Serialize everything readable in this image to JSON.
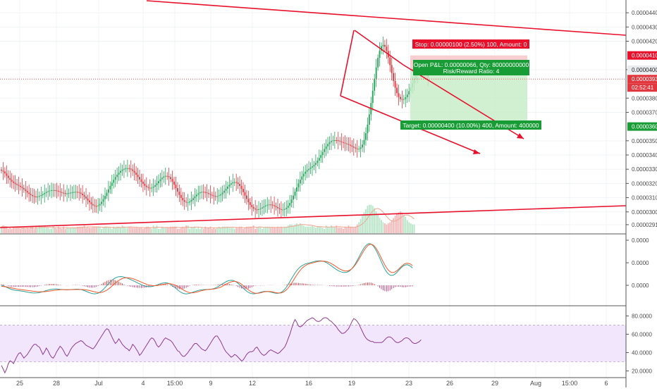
{
  "chart_data": {
    "type": "candlestick",
    "panes": [
      "price-volume",
      "macd",
      "rsi"
    ],
    "x_tick_labels": [
      "25",
      "28",
      "Jul",
      "4",
      "15:00",
      "9",
      "12",
      "16",
      "19",
      "23",
      "26",
      "29",
      "Aug",
      "15:00",
      "6"
    ],
    "price_axis": {
      "ticks": [
        "0.00004400",
        "0.00004300",
        "0.00004200",
        "0.00004000",
        "0.00003800",
        "0.00003700",
        "0.00003500",
        "0.00003400",
        "0.00003300",
        "0.00003200",
        "0.00003100",
        "0.00003000",
        "0.00002910"
      ],
      "ylim": [
        2.87e-05,
        4.47e-05
      ],
      "badges": {
        "stop": "0.00004100",
        "entry": "0.00004000",
        "last": "0.00003934",
        "countdown": "02:52:41",
        "target": "0.00003600"
      }
    },
    "macd_axis": {
      "ticks": [
        "0.0000",
        "0.0000",
        "0.0000"
      ]
    },
    "rsi_axis": {
      "ticks": [
        "80.0000",
        "60.0000",
        "40.0000",
        "20.0000"
      ],
      "ylim": [
        15,
        88
      ],
      "band": [
        30,
        70
      ]
    },
    "position": {
      "stop_label": "Stop: 0.00000100 (2.50%) 100, Amount: 0",
      "pnl_label": "Open P&L: 0.00000066, Qty: 80000000000",
      "rr_label": "Risk/Reward Ratio: 4",
      "target_label": "Target: 0.00000400 (10.00%) 400, Amount: 400000",
      "entry": 4e-05,
      "stop": 4.1e-05,
      "target": 3.6e-05
    },
    "price_series": [
      3.29e-05,
      3.284e-05,
      3.27e-05,
      3.254e-05,
      3.238e-05,
      3.225e-05,
      3.213e-05,
      3.204e-05,
      3.196e-05,
      3.189e-05,
      3.183e-05,
      3.176e-05,
      3.168e-05,
      3.158e-05,
      3.147e-05,
      3.136e-05,
      3.126e-05,
      3.118e-05,
      3.111e-05,
      3.108e-05,
      3.107e-05,
      3.108e-05,
      3.112e-05,
      3.118e-05,
      3.125e-05,
      3.133e-05,
      3.14e-05,
      3.146e-05,
      3.15e-05,
      3.153e-05,
      3.153e-05,
      3.151e-05,
      3.148e-05,
      3.144e-05,
      3.139e-05,
      3.135e-05,
      3.132e-05,
      3.13e-05,
      3.13e-05,
      3.132e-05,
      3.135e-05,
      3.138e-05,
      3.14e-05,
      3.141e-05,
      3.139e-05,
      3.135e-05,
      3.128e-05,
      3.118e-05,
      3.107e-05,
      3.094e-05,
      3.08e-05,
      3.067e-05,
      3.055e-05,
      3.046e-05,
      3.041e-05,
      3.04e-05,
      3.045e-05,
      3.056e-05,
      3.071e-05,
      3.09e-05,
      3.112e-05,
      3.135e-05,
      3.159e-05,
      3.183e-05,
      3.205e-05,
      3.226e-05,
      3.245e-05,
      3.262e-05,
      3.276e-05,
      3.288e-05,
      3.297e-05,
      3.303e-05,
      3.307e-05,
      3.307e-05,
      3.304e-05,
      3.298e-05,
      3.288e-05,
      3.276e-05,
      3.261e-05,
      3.245e-05,
      3.228e-05,
      3.212e-05,
      3.197e-05,
      3.184e-05,
      3.175e-05,
      3.169e-05,
      3.167e-05,
      3.17e-05,
      3.177e-05,
      3.188e-05,
      3.201e-05,
      3.216e-05,
      3.229e-05,
      3.241e-05,
      3.249e-05,
      3.253e-05,
      3.251e-05,
      3.244e-05,
      3.231e-05,
      3.213e-05,
      3.191e-05,
      3.167e-05,
      3.142e-05,
      3.119e-05,
      3.098e-05,
      3.082e-05,
      3.071e-05,
      3.066e-05,
      3.067e-05,
      3.073e-05,
      3.083e-05,
      3.096e-05,
      3.109e-05,
      3.121e-05,
      3.131e-05,
      3.138e-05,
      3.141e-05,
      3.14e-05,
      3.137e-05,
      3.132e-05,
      3.126e-05,
      3.12e-05,
      3.115e-05,
      3.111e-05,
      3.11e-05,
      3.111e-05,
      3.116e-05,
      3.124e-05,
      3.135e-05,
      3.149e-05,
      3.163e-05,
      3.178e-05,
      3.191e-05,
      3.201e-05,
      3.208e-05,
      3.21e-05,
      3.206e-05,
      3.197e-05,
      3.182e-05,
      3.162e-05,
      3.139e-05,
      3.115e-05,
      3.091e-05,
      3.068e-05,
      3.049e-05,
      3.034e-05,
      3.023e-05,
      3.017e-05,
      3.016e-05,
      3.019e-05,
      3.024e-05,
      3.031e-05,
      3.039e-05,
      3.045e-05,
      3.05e-05,
      3.052e-05,
      3.051e-05,
      3.047e-05,
      3.041e-05,
      3.034e-05,
      3.026e-05,
      3.02e-05,
      3.016e-05,
      3.016e-05,
      3.02e-05,
      3.029e-05,
      3.044e-05,
      3.063e-05,
      3.087e-05,
      3.114e-05,
      3.143e-05,
      3.172e-05,
      3.2e-05,
      3.226e-05,
      3.249e-05,
      3.268e-05,
      3.283e-05,
      3.294e-05,
      3.303e-05,
      3.312e-05,
      3.32e-05,
      3.331e-05,
      3.344e-05,
      3.36e-05,
      3.379e-05,
      3.4e-05,
      3.421e-05,
      3.442e-05,
      3.461e-05,
      3.477e-05,
      3.49e-05,
      3.498e-05,
      3.503e-05,
      3.504e-05,
      3.503e-05,
      3.5e-05,
      3.495e-05,
      3.49e-05,
      3.486e-05,
      3.481e-05,
      3.477e-05,
      3.472e-05,
      3.466e-05,
      3.459e-05,
      3.452e-05,
      3.446e-05,
      3.442e-05,
      3.443e-05,
      3.453e-05,
      3.473e-05,
      3.506e-05,
      3.553e-05,
      3.613e-05,
      3.685e-05,
      3.766e-05,
      3.852e-05,
      3.937e-05,
      4.016e-05,
      4.083e-05,
      4.134e-05,
      4.165e-05,
      4.174e-05,
      4.161e-05,
      4.131e-05,
      4.086e-05,
      4.032e-05,
      3.976e-05,
      3.921e-05,
      3.873e-05,
      3.835e-05,
      3.808e-05,
      3.793e-05,
      3.788e-05,
      3.793e-05,
      3.806e-05,
      3.825e-05,
      3.849e-05,
      3.876e-05,
      3.905e-05,
      3.935e-05,
      3.962e-05,
      3.984e-05,
      3.999e-05,
      4.005e-05,
      4e-05,
      3.985e-05,
      3.964e-05,
      3.939e-05
    ],
    "volume_series": [
      6,
      7,
      5,
      6,
      4,
      5,
      4,
      5,
      5,
      6,
      5,
      4,
      5,
      5,
      4,
      5,
      4,
      6,
      6,
      4,
      6,
      5,
      7,
      6,
      5,
      5,
      5,
      5,
      4,
      4,
      7,
      5,
      4,
      6,
      5,
      4,
      6,
      4,
      5,
      5,
      5,
      5,
      5,
      5,
      6,
      6,
      6,
      6,
      7,
      5,
      6,
      5,
      5,
      6,
      6,
      6,
      6,
      6,
      4,
      5,
      6,
      6,
      5,
      5,
      4,
      6,
      5,
      6,
      6,
      5,
      7,
      6,
      5,
      5,
      6,
      6,
      5,
      5,
      5,
      5,
      5,
      5,
      4,
      5,
      6,
      6,
      5,
      4,
      7,
      5,
      7,
      4,
      4,
      6,
      5,
      5,
      5,
      5,
      6,
      6,
      6,
      6,
      4,
      4,
      5,
      6,
      5,
      7,
      7,
      4,
      6,
      5,
      6,
      4,
      6,
      4,
      5,
      4,
      6,
      5,
      5,
      6,
      4,
      5,
      4,
      5,
      6,
      5,
      6,
      6,
      6,
      6,
      5,
      5,
      5,
      4,
      5,
      5,
      6,
      6,
      4,
      5,
      6,
      6,
      6,
      6,
      7,
      4,
      5,
      6,
      6,
      4,
      5,
      6,
      6,
      6,
      5,
      5,
      5,
      5,
      6,
      5,
      6,
      5,
      6,
      6,
      7,
      8,
      8,
      7,
      8,
      9,
      8,
      9,
      8,
      7,
      6,
      6,
      6,
      6,
      7,
      6,
      5,
      6,
      6,
      6,
      5,
      4,
      7,
      6,
      5,
      7,
      6,
      6,
      7,
      5,
      5,
      5,
      4,
      6,
      5,
      7,
      6,
      6,
      5,
      6,
      8,
      10,
      13,
      16,
      19,
      22,
      25,
      26,
      26,
      25,
      23,
      20,
      17,
      14,
      12,
      10,
      9,
      8,
      9,
      10,
      12,
      14,
      16,
      18,
      19,
      20,
      19,
      17,
      15,
      12,
      10,
      9,
      8,
      8
    ],
    "macd_line": [
      0.0,
      -0.04,
      -0.12,
      -0.22,
      -0.32,
      -0.41,
      -0.48,
      -0.53,
      -0.57,
      -0.6,
      -0.62,
      -0.64,
      -0.67,
      -0.7,
      -0.74,
      -0.78,
      -0.82,
      -0.85,
      -0.88,
      -0.89,
      -0.88,
      -0.86,
      -0.83,
      -0.78,
      -0.73,
      -0.67,
      -0.6,
      -0.55,
      -0.5,
      -0.46,
      -0.44,
      -0.43,
      -0.43,
      -0.44,
      -0.46,
      -0.48,
      -0.5,
      -0.51,
      -0.52,
      -0.51,
      -0.5,
      -0.48,
      -0.46,
      -0.45,
      -0.45,
      -0.46,
      -0.49,
      -0.54,
      -0.61,
      -0.69,
      -0.77,
      -0.85,
      -0.92,
      -0.97,
      -0.98,
      -0.96,
      -0.9,
      -0.79,
      -0.65,
      -0.47,
      -0.26,
      -0.04,
      0.18,
      0.39,
      0.58,
      0.74,
      0.86,
      0.95,
      0.99,
      1.01,
      0.99,
      0.95,
      0.89,
      0.82,
      0.74,
      0.65,
      0.56,
      0.46,
      0.36,
      0.26,
      0.16,
      0.07,
      -0.01,
      -0.08,
      -0.13,
      -0.15,
      -0.16,
      -0.14,
      -0.1,
      -0.04,
      0.03,
      0.11,
      0.18,
      0.24,
      0.28,
      0.29,
      0.26,
      0.2,
      0.1,
      -0.03,
      -0.18,
      -0.35,
      -0.52,
      -0.68,
      -0.81,
      -0.91,
      -0.97,
      -0.99,
      -0.97,
      -0.92,
      -0.86,
      -0.78,
      -0.71,
      -0.65,
      -0.59,
      -0.55,
      -0.52,
      -0.5,
      -0.49,
      -0.48,
      -0.47,
      -0.45,
      -0.42,
      -0.37,
      -0.3,
      -0.2,
      -0.09,
      0.04,
      0.17,
      0.3,
      0.41,
      0.5,
      0.56,
      0.58,
      0.56,
      0.49,
      0.38,
      0.23,
      0.06,
      -0.13,
      -0.33,
      -0.51,
      -0.68,
      -0.81,
      -0.91,
      -0.96,
      -0.98,
      -0.96,
      -0.92,
      -0.86,
      -0.8,
      -0.75,
      -0.71,
      -0.7,
      -0.71,
      -0.74,
      -0.79,
      -0.84,
      -0.89,
      -0.92,
      -0.93,
      -0.89,
      -0.81,
      -0.66,
      -0.46,
      -0.2,
      0.1,
      0.43,
      0.77,
      1.1,
      1.42,
      1.7,
      1.93,
      2.12,
      2.26,
      2.37,
      2.46,
      2.52,
      2.58,
      2.63,
      2.68,
      2.73,
      2.78,
      2.81,
      2.83,
      2.82,
      2.79,
      2.73,
      2.64,
      2.53,
      2.39,
      2.25,
      2.1,
      1.96,
      1.82,
      1.7,
      1.6,
      1.53,
      1.48,
      1.48,
      1.51,
      1.59,
      1.74,
      1.94,
      2.2,
      2.52,
      2.88,
      3.26,
      3.64,
      4.01,
      4.33,
      4.58,
      4.75,
      4.81,
      4.76,
      4.61,
      4.35,
      4.01,
      3.6,
      3.16,
      2.71,
      2.27,
      1.88,
      1.56,
      1.32,
      1.18,
      1.14,
      1.19,
      1.32,
      1.5,
      1.72,
      1.94,
      2.13,
      2.28,
      2.36,
      2.37,
      2.31,
      2.18,
      2.0
    ],
    "macd_signal": [
      -0.12,
      -0.13,
      -0.16,
      -0.19,
      -0.23,
      -0.27,
      -0.31,
      -0.35,
      -0.39,
      -0.43,
      -0.46,
      -0.49,
      -0.51,
      -0.54,
      -0.56,
      -0.59,
      -0.62,
      -0.64,
      -0.67,
      -0.69,
      -0.71,
      -0.73,
      -0.74,
      -0.74,
      -0.74,
      -0.73,
      -0.71,
      -0.68,
      -0.66,
      -0.63,
      -0.6,
      -0.57,
      -0.55,
      -0.53,
      -0.51,
      -0.5,
      -0.5,
      -0.5,
      -0.5,
      -0.5,
      -0.5,
      -0.5,
      -0.49,
      -0.49,
      -0.48,
      -0.48,
      -0.48,
      -0.49,
      -0.5,
      -0.53,
      -0.56,
      -0.6,
      -0.65,
      -0.7,
      -0.75,
      -0.79,
      -0.82,
      -0.83,
      -0.81,
      -0.76,
      -0.67,
      -0.56,
      -0.42,
      -0.26,
      -0.08,
      0.09,
      0.27,
      0.43,
      0.57,
      0.69,
      0.78,
      0.84,
      0.87,
      0.88,
      0.86,
      0.82,
      0.77,
      0.7,
      0.63,
      0.54,
      0.46,
      0.37,
      0.28,
      0.2,
      0.12,
      0.06,
      0.01,
      -0.02,
      -0.04,
      -0.04,
      -0.03,
      0.0,
      0.04,
      0.08,
      0.12,
      0.16,
      0.18,
      0.19,
      0.17,
      0.13,
      0.07,
      -0.01,
      -0.12,
      -0.24,
      -0.36,
      -0.49,
      -0.61,
      -0.71,
      -0.79,
      -0.84,
      -0.86,
      -0.86,
      -0.83,
      -0.78,
      -0.73,
      -0.67,
      -0.62,
      -0.57,
      -0.53,
      -0.5,
      -0.48,
      -0.46,
      -0.44,
      -0.42,
      -0.39,
      -0.34,
      -0.28,
      -0.2,
      -0.1,
      0.01,
      0.12,
      0.23,
      0.33,
      0.4,
      0.45,
      0.46,
      0.43,
      0.36,
      0.26,
      0.13,
      -0.03,
      -0.19,
      -0.36,
      -0.52,
      -0.66,
      -0.78,
      -0.86,
      -0.91,
      -0.92,
      -0.9,
      -0.86,
      -0.81,
      -0.76,
      -0.73,
      -0.71,
      -0.71,
      -0.73,
      -0.76,
      -0.81,
      -0.85,
      -0.88,
      -0.89,
      -0.87,
      -0.8,
      -0.69,
      -0.52,
      -0.31,
      -0.05,
      0.24,
      0.56,
      0.88,
      1.19,
      1.48,
      1.74,
      1.96,
      2.14,
      2.28,
      2.39,
      2.47,
      2.53,
      2.58,
      2.63,
      2.68,
      2.73,
      2.77,
      2.79,
      2.8,
      2.79,
      2.75,
      2.69,
      2.61,
      2.51,
      2.39,
      2.26,
      2.13,
      2.0,
      1.88,
      1.78,
      1.7,
      1.66,
      1.66,
      1.7,
      1.79,
      1.94,
      2.14,
      2.39,
      2.68,
      3.01,
      3.36,
      3.71,
      4.04,
      4.33,
      4.56,
      4.7,
      4.74,
      4.68,
      4.51,
      4.25,
      3.92,
      3.54,
      3.13,
      2.72,
      2.35,
      2.02,
      1.76,
      1.58,
      1.49,
      1.48,
      1.55,
      1.69,
      1.87,
      2.07,
      2.26,
      2.42,
      2.52,
      2.55,
      2.52,
      2.42,
      2.27
    ],
    "macd_hist": [
      0.12,
      0.09,
      0.04,
      -0.03,
      -0.09,
      -0.14,
      -0.17,
      -0.18,
      -0.18,
      -0.17,
      -0.16,
      -0.16,
      -0.16,
      -0.16,
      -0.17,
      -0.19,
      -0.2,
      -0.21,
      -0.21,
      -0.2,
      -0.18,
      -0.14,
      -0.09,
      -0.04,
      0.01,
      0.06,
      0.1,
      0.13,
      0.15,
      0.16,
      0.16,
      0.15,
      0.12,
      0.09,
      0.05,
      0.02,
      -0.0,
      -0.01,
      -0.02,
      -0.01,
      0.0,
      0.02,
      0.03,
      0.04,
      0.03,
      0.02,
      -0.01,
      -0.05,
      -0.1,
      -0.16,
      -0.21,
      -0.25,
      -0.27,
      -0.27,
      -0.24,
      -0.17,
      -0.08,
      0.04,
      0.16,
      0.29,
      0.41,
      0.51,
      0.6,
      0.65,
      0.66,
      0.65,
      0.6,
      0.52,
      0.43,
      0.32,
      0.22,
      0.11,
      0.02,
      -0.06,
      -0.12,
      -0.17,
      -0.21,
      -0.24,
      -0.26,
      -0.28,
      -0.29,
      -0.3,
      -0.29,
      -0.28,
      -0.25,
      -0.22,
      -0.17,
      -0.11,
      -0.05,
      0.01,
      0.06,
      0.11,
      0.14,
      0.16,
      0.16,
      0.13,
      0.08,
      0.01,
      -0.07,
      -0.16,
      -0.25,
      -0.34,
      -0.4,
      -0.44,
      -0.45,
      -0.43,
      -0.37,
      -0.29,
      -0.18,
      -0.07,
      0.0,
      0.05,
      0.08,
      0.08,
      0.07,
      0.05,
      0.04,
      0.03,
      0.02,
      0.02,
      0.02,
      0.02,
      0.03,
      0.04,
      0.05,
      0.08,
      0.11,
      0.14,
      0.16,
      0.18,
      0.18,
      0.17,
      0.15,
      0.12,
      0.06,
      -0.01,
      -0.09,
      -0.19,
      -0.29,
      -0.37,
      -0.42,
      -0.45,
      -0.44,
      -0.39,
      -0.31,
      -0.22,
      -0.12,
      -0.05,
      -0.02,
      -0.02,
      -0.03,
      -0.03,
      -0.02,
      -0.0,
      0.01,
      0.02,
      0.02,
      0.02,
      0.01,
      0.0,
      -0.01,
      -0.01,
      -0.01,
      0.0,
      0.04,
      0.09,
      0.15,
      0.21,
      0.25,
      0.28,
      0.29,
      0.29,
      0.27,
      0.25,
      0.23,
      0.21,
      0.19,
      0.16,
      0.12,
      0.09,
      0.07,
      0.05,
      0.04,
      0.04,
      0.04,
      0.04,
      0.03,
      0.01,
      -0.01,
      -0.03,
      -0.06,
      -0.08,
      -0.1,
      -0.12,
      -0.13,
      -0.14,
      -0.14,
      -0.14,
      -0.14,
      -0.14,
      -0.13,
      -0.12,
      -0.11,
      -0.09,
      -0.06,
      -0.03,
      0.01,
      0.07,
      0.12,
      0.19,
      0.25,
      0.3,
      0.33,
      0.34,
      0.31,
      0.25,
      0.15,
      0.02,
      -0.12,
      -0.29,
      -0.45,
      -0.58,
      -0.67,
      -0.71,
      -0.68,
      -0.6,
      -0.46,
      -0.32,
      -0.2,
      -0.15,
      -0.14,
      -0.17,
      -0.21,
      -0.23,
      -0.22,
      -0.18,
      -0.14,
      -0.12,
      -0.12
    ],
    "rsi_series": [
      26,
      22,
      18,
      22,
      28,
      31,
      30,
      28,
      32,
      36,
      39,
      40,
      37,
      34,
      36,
      38,
      41,
      44,
      47,
      49,
      49,
      47,
      46,
      42,
      38,
      41,
      45,
      42,
      38,
      35,
      34,
      37,
      41,
      44,
      47,
      45,
      42,
      38,
      36,
      39,
      43,
      46,
      48,
      50,
      51,
      52,
      53,
      52,
      50,
      48,
      47,
      46,
      45,
      44,
      46,
      49,
      52,
      55,
      58,
      61,
      64,
      66,
      65,
      61,
      57,
      53,
      50,
      52,
      55,
      52,
      49,
      47,
      45,
      44,
      42,
      45,
      49,
      47,
      44,
      41,
      37,
      39,
      42,
      45,
      48,
      51,
      54,
      56,
      55,
      52,
      48,
      46,
      48,
      51,
      54,
      56,
      55,
      54,
      53,
      51,
      48,
      45,
      42,
      41,
      38,
      36,
      36,
      38,
      40,
      43,
      45,
      48,
      50,
      50,
      48,
      46,
      44,
      43,
      42,
      44,
      47,
      50,
      53,
      56,
      58,
      58,
      55,
      52,
      48,
      44,
      41,
      39,
      37,
      35,
      36,
      38,
      37,
      35,
      33,
      31,
      32,
      35,
      38,
      40,
      41,
      41,
      42,
      45,
      46,
      43,
      40,
      38,
      37,
      38,
      40,
      42,
      43,
      42,
      41,
      40,
      39,
      40,
      42,
      44,
      46,
      50,
      55,
      60,
      66,
      72,
      76,
      73,
      69,
      68,
      69,
      71,
      73,
      75,
      76,
      77,
      78,
      77,
      75,
      74,
      74,
      75,
      77,
      78,
      78,
      77,
      75,
      74,
      72,
      70,
      68,
      65,
      63,
      61,
      61,
      62,
      64,
      66,
      70,
      74,
      77,
      76,
      74,
      71,
      67,
      63,
      59,
      56,
      54,
      53,
      52,
      52,
      51,
      51,
      51,
      51,
      51,
      52,
      54,
      56,
      57,
      57,
      56,
      54,
      52,
      51,
      51,
      52,
      53,
      55,
      56,
      56,
      55,
      53,
      51,
      50,
      50,
      51,
      52,
      54
    ]
  }
}
